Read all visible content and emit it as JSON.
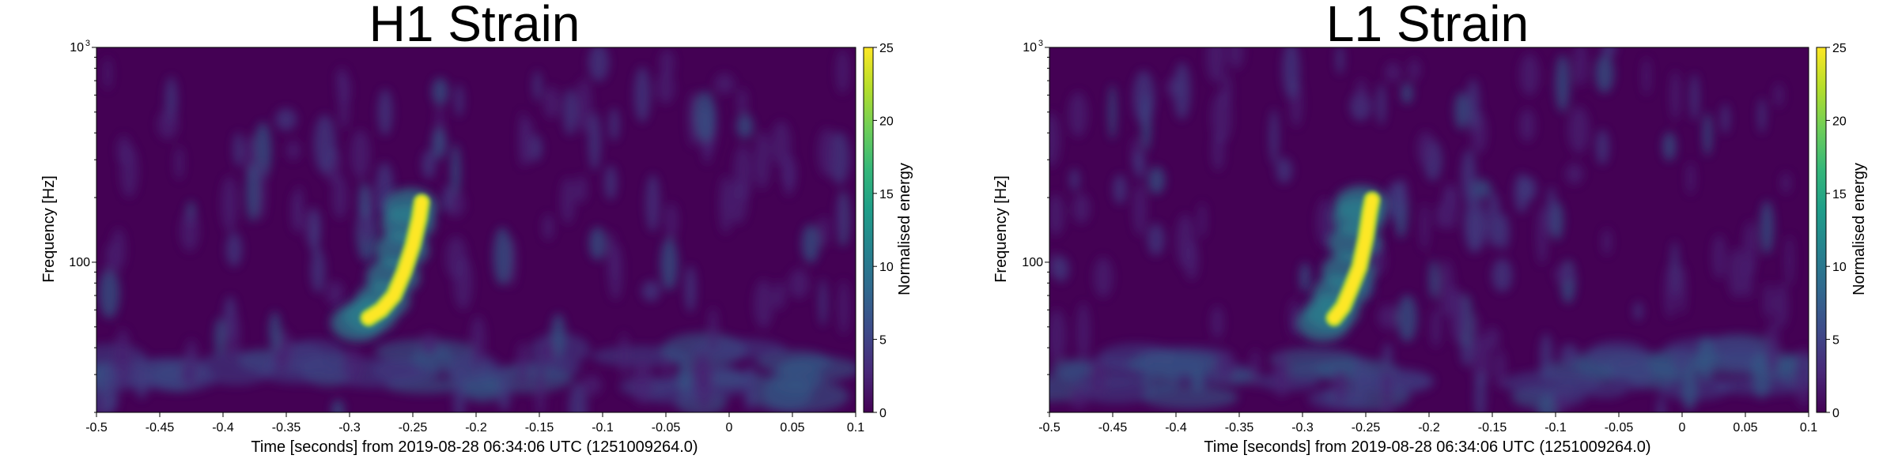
{
  "chart_data": [
    {
      "type": "heatmap",
      "title": "H1 Strain",
      "xlabel": "Time [seconds] from 2019-08-28 06:34:06 UTC (1251009264.0)",
      "ylabel": "Frequency [Hz]",
      "xlim": [
        -0.5,
        0.1
      ],
      "ylim": [
        20,
        1000
      ],
      "yscale": "log",
      "x_ticks": [
        "-0.5",
        "-0.45",
        "-0.4",
        "-0.35",
        "-0.3",
        "-0.25",
        "-0.2",
        "-0.15",
        "-0.1",
        "-0.05",
        "0",
        "0.05",
        "0.1"
      ],
      "y_ticks": [
        {
          "value": 100,
          "label": "100",
          "sup": ""
        },
        {
          "value": 1000,
          "label": "10",
          "sup": "3"
        }
      ],
      "colorbar": {
        "label": "Normalised energy",
        "range": [
          0,
          25
        ],
        "ticks": [
          "0",
          "5",
          "10",
          "15",
          "20",
          "25"
        ],
        "colormap": "viridis"
      },
      "chirp": [
        {
          "t": -0.285,
          "f": 55
        },
        {
          "t": -0.275,
          "f": 60
        },
        {
          "t": -0.265,
          "f": 70
        },
        {
          "t": -0.257,
          "f": 90
        },
        {
          "t": -0.25,
          "f": 120
        },
        {
          "t": -0.245,
          "f": 160
        },
        {
          "t": -0.243,
          "f": 190
        }
      ],
      "peak_energy": 25
    },
    {
      "type": "heatmap",
      "title": "L1 Strain",
      "xlabel": "Time [seconds] from 2019-08-28 06:34:06 UTC (1251009264.0)",
      "ylabel": "Frequency [Hz]",
      "xlim": [
        -0.5,
        0.1
      ],
      "ylim": [
        20,
        1000
      ],
      "yscale": "log",
      "x_ticks": [
        "-0.5",
        "-0.45",
        "-0.4",
        "-0.35",
        "-0.3",
        "-0.25",
        "-0.2",
        "-0.15",
        "-0.1",
        "-0.05",
        "0",
        "0.05",
        "0.1"
      ],
      "y_ticks": [
        {
          "value": 100,
          "label": "100",
          "sup": ""
        },
        {
          "value": 1000,
          "label": "10",
          "sup": "3"
        }
      ],
      "colorbar": {
        "label": "Normalised energy",
        "range": [
          0,
          25
        ],
        "ticks": [
          "0",
          "5",
          "10",
          "15",
          "20",
          "25"
        ],
        "colormap": "viridis"
      },
      "chirp": [
        {
          "t": -0.275,
          "f": 55
        },
        {
          "t": -0.268,
          "f": 62
        },
        {
          "t": -0.262,
          "f": 75
        },
        {
          "t": -0.255,
          "f": 95
        },
        {
          "t": -0.25,
          "f": 130
        },
        {
          "t": -0.247,
          "f": 170
        },
        {
          "t": -0.245,
          "f": 195
        }
      ],
      "peak_energy": 25
    }
  ]
}
